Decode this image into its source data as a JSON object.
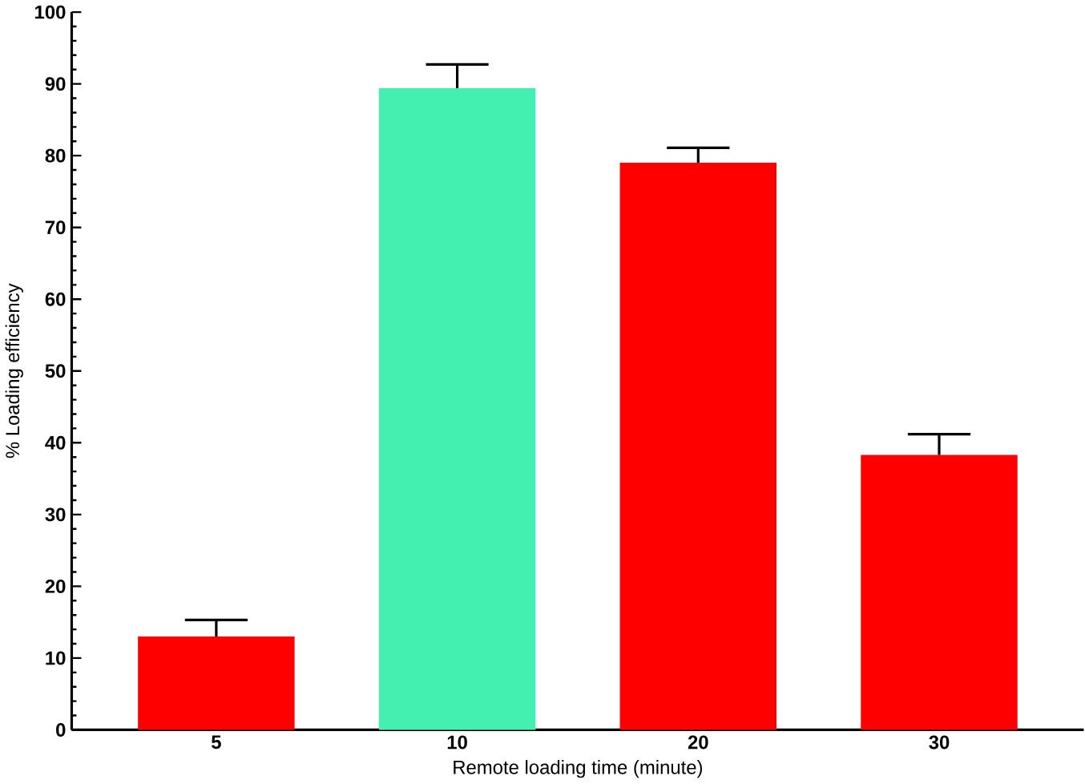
{
  "chart_data": {
    "type": "bar",
    "xlabel": "Remote loading time (minute)",
    "ylabel": "% Loading efficiency",
    "categories": [
      "5",
      "10",
      "20",
      "30"
    ],
    "values": [
      13,
      89.4,
      79,
      38.3
    ],
    "colors": [
      "#ff0000",
      "#44f0b0",
      "#ff0000",
      "#ff0000"
    ],
    "errors": [
      [
        13,
        15.3
      ],
      [
        89.4,
        92.7
      ],
      [
        79,
        81.1
      ],
      [
        38.3,
        41.2
      ]
    ],
    "ylim": [
      0,
      100
    ],
    "yticks": [
      0,
      10,
      20,
      30,
      40,
      50,
      60,
      70,
      80,
      90,
      100
    ],
    "grid": false
  }
}
